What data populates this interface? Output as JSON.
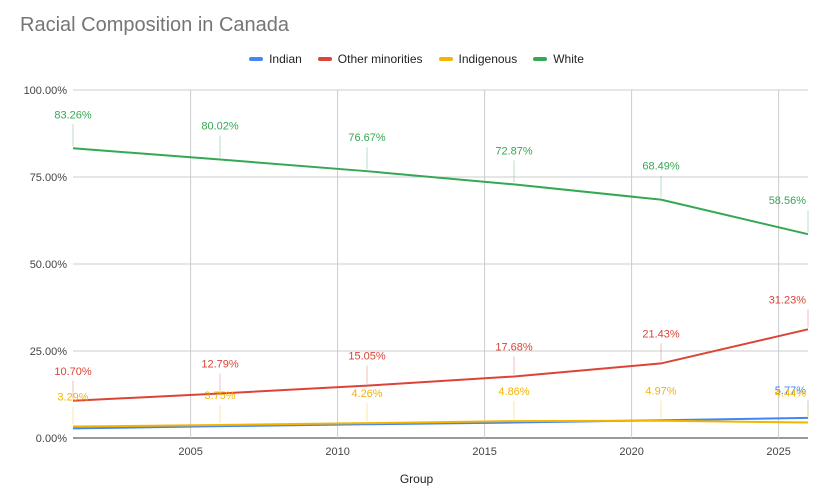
{
  "chart_data": {
    "type": "line",
    "title": "Racial Composition in Canada",
    "xlabel": "Group",
    "ylabel": "",
    "x": [
      2001,
      2006,
      2011,
      2016,
      2021,
      2026
    ],
    "xlim": [
      2001,
      2026
    ],
    "x_ticks": [
      "2005",
      "2010",
      "2015",
      "2020",
      "2025"
    ],
    "x_tick_values": [
      2005,
      2010,
      2015,
      2020,
      2025
    ],
    "ylim": [
      0,
      100
    ],
    "y_ticks": [
      "0.00%",
      "25.00%",
      "50.00%",
      "75.00%",
      "100.00%"
    ],
    "y_tick_values": [
      0,
      25,
      50,
      75,
      100
    ],
    "grid": true,
    "legend_position": "top",
    "series": [
      {
        "name": "Indian",
        "color": "#4285f4",
        "values": [
          2.75,
          3.4,
          3.95,
          4.45,
          5.1,
          5.77
        ],
        "labels": [
          "",
          "",
          "",
          "",
          "",
          "5.77%"
        ]
      },
      {
        "name": "Other minorities",
        "color": "#db4437",
        "values": [
          10.7,
          12.79,
          15.05,
          17.68,
          21.43,
          31.23
        ],
        "labels": [
          "10.70%",
          "12.79%",
          "15.05%",
          "17.68%",
          "21.43%",
          "31.23%"
        ]
      },
      {
        "name": "Indigenous",
        "color": "#f4b400",
        "values": [
          3.29,
          3.75,
          4.26,
          4.86,
          4.97,
          4.44
        ],
        "labels": [
          "3.29%",
          "3.75%",
          "4.26%",
          "4.86%",
          "4.97%",
          "4.44%"
        ]
      },
      {
        "name": "White",
        "color": "#34a853",
        "values": [
          83.26,
          80.02,
          76.67,
          72.87,
          68.49,
          58.56
        ],
        "labels": [
          "83.26%",
          "80.02%",
          "76.67%",
          "72.87%",
          "68.49%",
          "58.56%"
        ]
      }
    ]
  }
}
